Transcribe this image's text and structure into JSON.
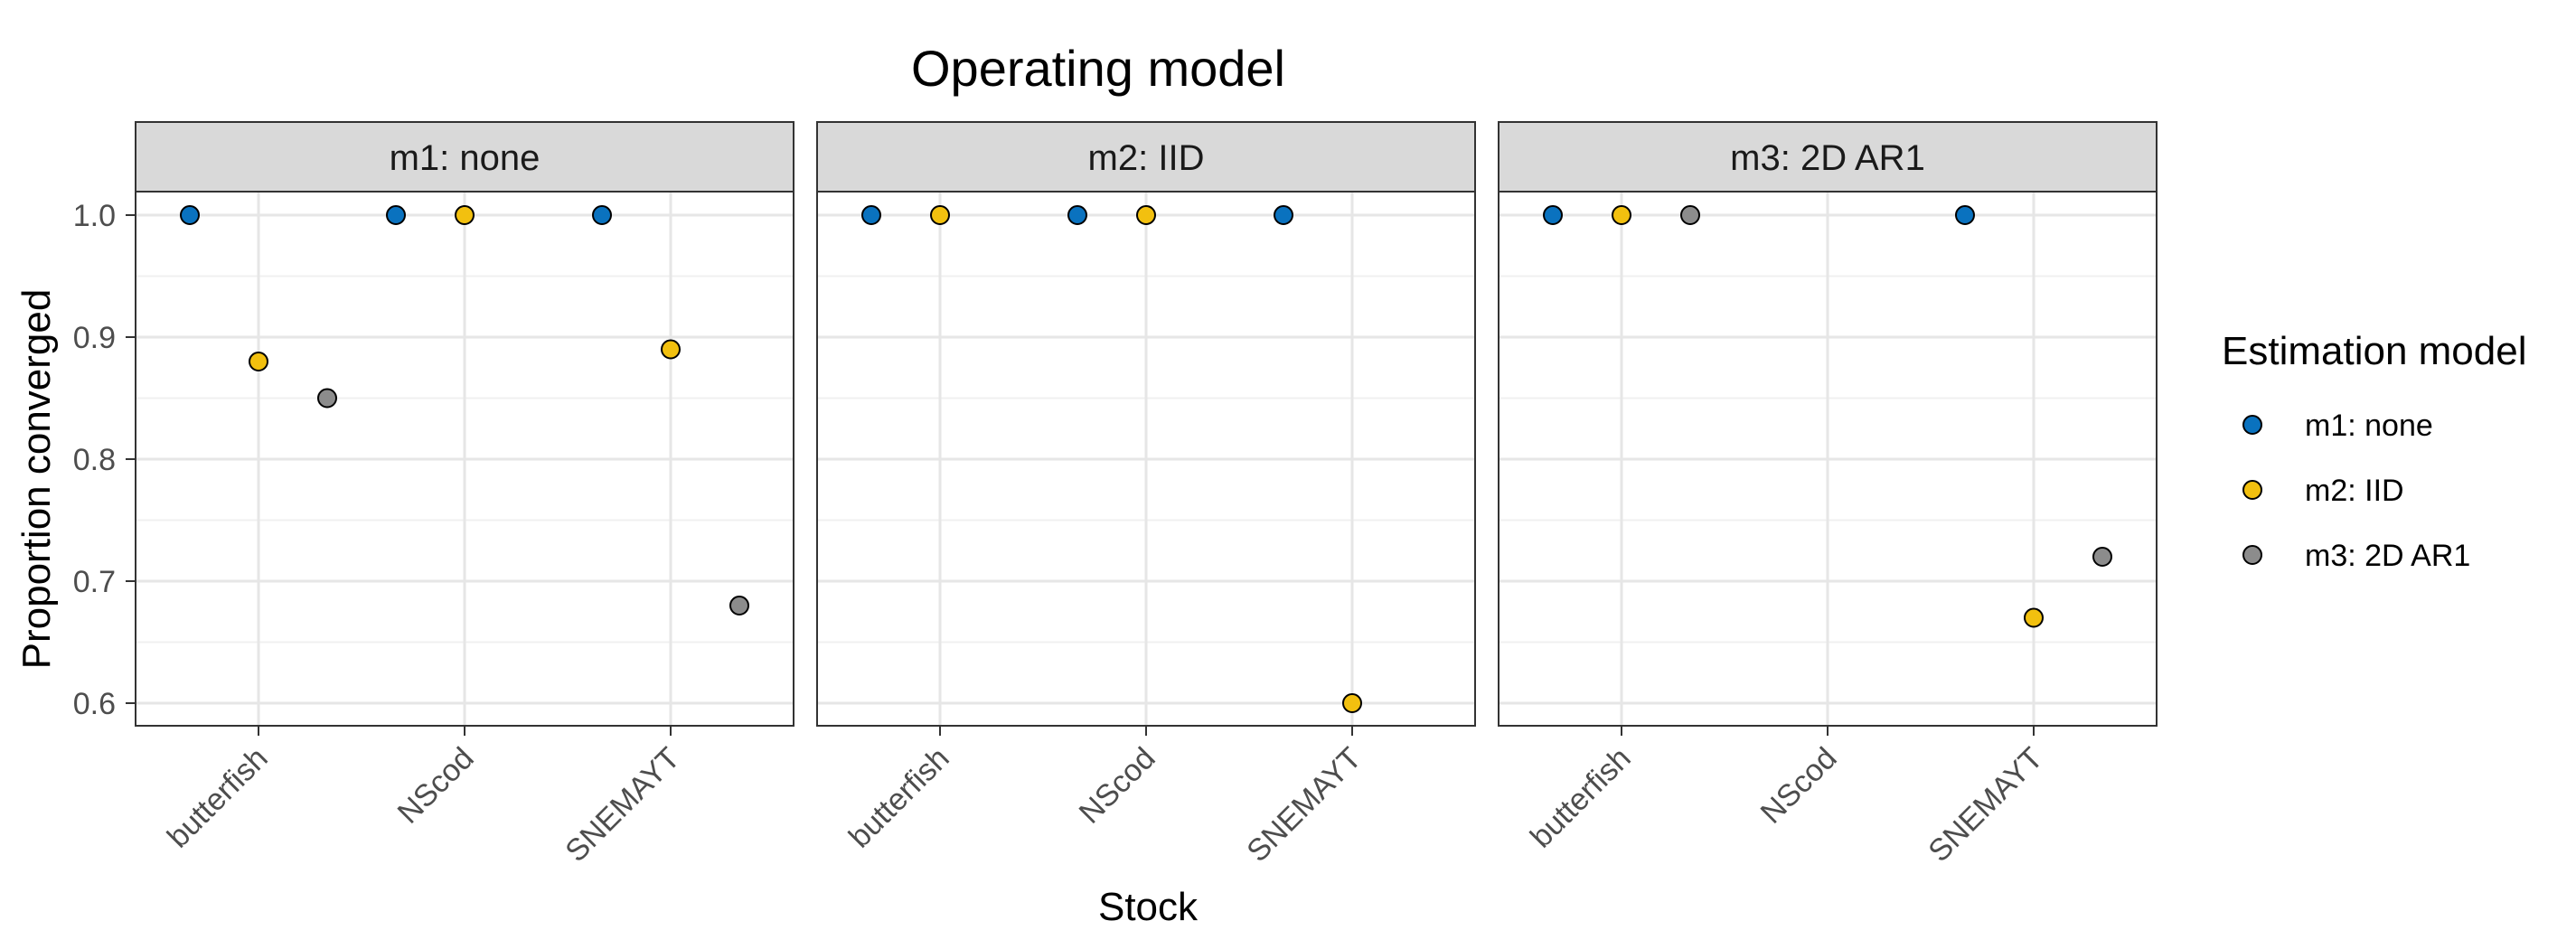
{
  "chart_data": {
    "type": "scatter",
    "title": "Operating model",
    "xlabel": "Stock",
    "ylabel": "Proportion converged",
    "ylim": [
      0.58,
      1.02
    ],
    "yticks": [
      "0.6",
      "0.7",
      "0.8",
      "0.9",
      "1.0"
    ],
    "categories": [
      "butterfish",
      "NScod",
      "SNEMAYT"
    ],
    "grid": true,
    "legend": {
      "title": "Estimation model",
      "placement": "right",
      "entries": [
        {
          "label": "m1: none",
          "color": "#0a72bf"
        },
        {
          "label": "m2: IID",
          "color": "#f2c00f"
        },
        {
          "label": "m3: 2D AR1",
          "color": "#8c8c8c"
        }
      ]
    },
    "panels": [
      {
        "label": "m1:  none",
        "series": [
          {
            "name": "m1: none",
            "values": [
              1.0,
              1.0,
              1.0
            ]
          },
          {
            "name": "m2: IID",
            "values": [
              0.88,
              1.0,
              0.89
            ]
          },
          {
            "name": "m3: 2D AR1",
            "values": [
              0.85,
              null,
              0.68
            ]
          }
        ]
      },
      {
        "label": "m2:  IID",
        "series": [
          {
            "name": "m1: none",
            "values": [
              1.0,
              1.0,
              1.0
            ]
          },
          {
            "name": "m2: IID",
            "values": [
              1.0,
              1.0,
              0.6
            ]
          },
          {
            "name": "m3: 2D AR1",
            "values": [
              null,
              null,
              null
            ]
          }
        ]
      },
      {
        "label": "m3:  2D  AR1",
        "series": [
          {
            "name": "m1: none",
            "values": [
              1.0,
              null,
              1.0
            ]
          },
          {
            "name": "m2: IID",
            "values": [
              1.0,
              null,
              0.67
            ]
          },
          {
            "name": "m3: 2D AR1",
            "values": [
              1.0,
              null,
              0.72
            ]
          }
        ]
      }
    ]
  }
}
